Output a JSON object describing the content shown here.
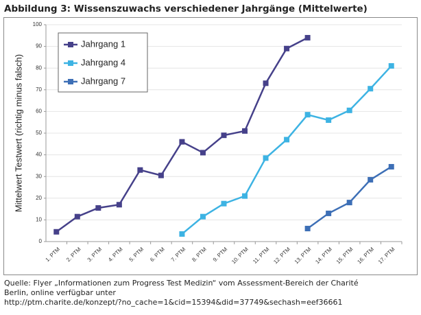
{
  "chart_data": {
    "type": "line",
    "title": "Abbildung 3: Wissenszuwachs verschiedener Jahrgänge (Mittelwerte)",
    "y_label": "Mittelwert Testwert (richtig minus falsch)",
    "categories": [
      "1. PTM",
      "2. PTM",
      "3. PTM",
      "4. PTM",
      "5. PTM",
      "6. PTM",
      "7. PTM",
      "8. PTM",
      "9. PTM",
      "10. PTM",
      "11. PTM",
      "12. PTM",
      "13. PTM",
      "14. PTM",
      "15. PTM",
      "16. PTM",
      "17. PTM"
    ],
    "series": [
      {
        "name": "Jahrgang 1",
        "color": "#46418a",
        "values": [
          4.5,
          11.5,
          15.5,
          17,
          33,
          30.5,
          46,
          41,
          49,
          51,
          73,
          89,
          94,
          null,
          null,
          null,
          null
        ]
      },
      {
        "name": "Jahrgang 4",
        "color": "#3db3e3",
        "values": [
          null,
          null,
          null,
          null,
          null,
          null,
          3.5,
          11.5,
          17.5,
          21,
          38.5,
          47,
          58.5,
          56,
          60.5,
          70.5,
          81
        ]
      },
      {
        "name": "Jahrgang 7",
        "color": "#3d6fb6",
        "values": [
          null,
          null,
          null,
          null,
          null,
          null,
          null,
          null,
          null,
          null,
          null,
          null,
          6,
          13,
          18,
          28.5,
          34.5
        ]
      }
    ],
    "ylim": [
      0,
      100
    ],
    "yticks": [
      0,
      10,
      20,
      30,
      40,
      50,
      60,
      70,
      80,
      90,
      100
    ],
    "grid": true,
    "legend": "top-left",
    "caption": [
      "Quelle: Flyer „Informationen zum Progress Test Medizin“ vom Assessment-Bereich der Charité",
      "Berlin, online verfügbar unter",
      "http://ptm.charite.de/konzept/?no_cache=1&cid=15394&did=37749&sechash=eef36661"
    ]
  }
}
